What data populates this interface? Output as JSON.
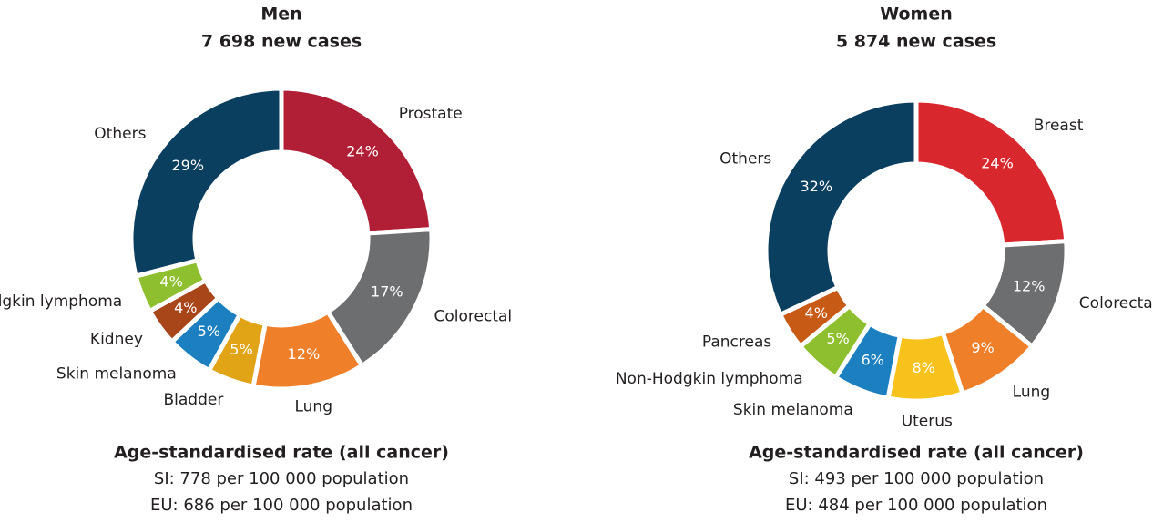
{
  "chart_data": [
    {
      "type": "donut",
      "title": "Men",
      "subtitle": "7 698 new cases",
      "categories": [
        "Prostate",
        "Colorectal",
        "Lung",
        "Bladder",
        "Skin melanoma",
        "Kidney",
        "Non-Hodgkin lymphoma",
        "Others"
      ],
      "values": [
        24,
        17,
        12,
        5,
        5,
        4,
        4,
        29
      ],
      "value_labels": [
        "24%",
        "17%",
        "12%",
        "5%",
        "5%",
        "4%",
        "4%",
        "29%"
      ],
      "colors": [
        "#b01f35",
        "#6d6e70",
        "#f07f2a",
        "#e0a416",
        "#1b7fc0",
        "#a8461a",
        "#8dbf2e",
        "#0b3f60"
      ],
      "footer": [
        "Age-standardised rate (all cancer)",
        "SI: 778 per 100 000 population",
        "EU: 686 per 100 000 population"
      ]
    },
    {
      "type": "donut",
      "title": "Women",
      "subtitle": "5 874 new cases",
      "categories": [
        "Breast",
        "Colorectal",
        "Lung",
        "Uterus",
        "Skin melanoma",
        "Non-Hodgkin lymphoma",
        "Pancreas",
        "Others"
      ],
      "values": [
        24,
        12,
        9,
        8,
        6,
        5,
        4,
        32
      ],
      "value_labels": [
        "24%",
        "12%",
        "9%",
        "8%",
        "6%",
        "5%",
        "4%",
        "32%"
      ],
      "colors": [
        "#d9272e",
        "#6d6e70",
        "#f07f2a",
        "#f8c21c",
        "#1b7fc0",
        "#8dbf2e",
        "#c75a14",
        "#0b3f60"
      ],
      "footer": [
        "Age-standardised rate (all cancer)",
        "SI: 493 per 100 000 population",
        "EU: 484 per 100 000 population"
      ]
    }
  ]
}
